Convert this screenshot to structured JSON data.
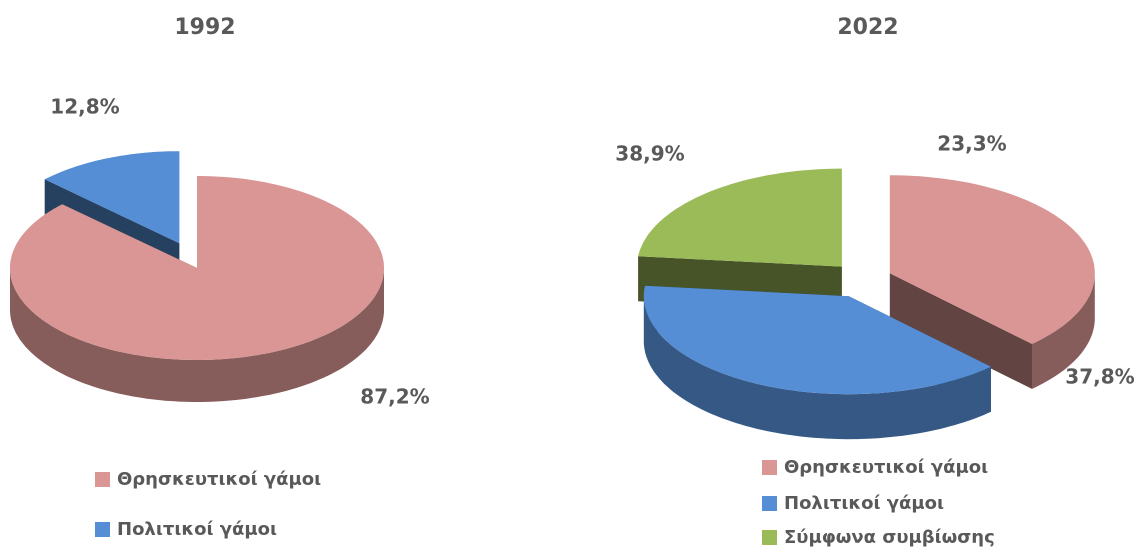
{
  "chart_data": [
    {
      "type": "pie",
      "title": "1992",
      "categories": [
        "Θρησκευτικοί γάμοι",
        "Πολιτικοί γάμοι"
      ],
      "values": [
        87.2,
        12.8
      ],
      "value_labels": [
        "87,2%",
        "12,8%"
      ],
      "colors": [
        "#d99694",
        "#558ed5"
      ],
      "legend": "bottom"
    },
    {
      "type": "pie",
      "title": "2022",
      "categories": [
        "Θρησκευτικοί γάμοι",
        "Πολιτικοί γάμοι",
        "Σύμφωνα συμβίωσης"
      ],
      "values": [
        37.8,
        38.9,
        23.3
      ],
      "value_labels": [
        "37,8%",
        "38,9%",
        "23,3%"
      ],
      "colors": [
        "#d99694",
        "#558ed5",
        "#9bbb59"
      ],
      "legend": "bottom"
    }
  ]
}
